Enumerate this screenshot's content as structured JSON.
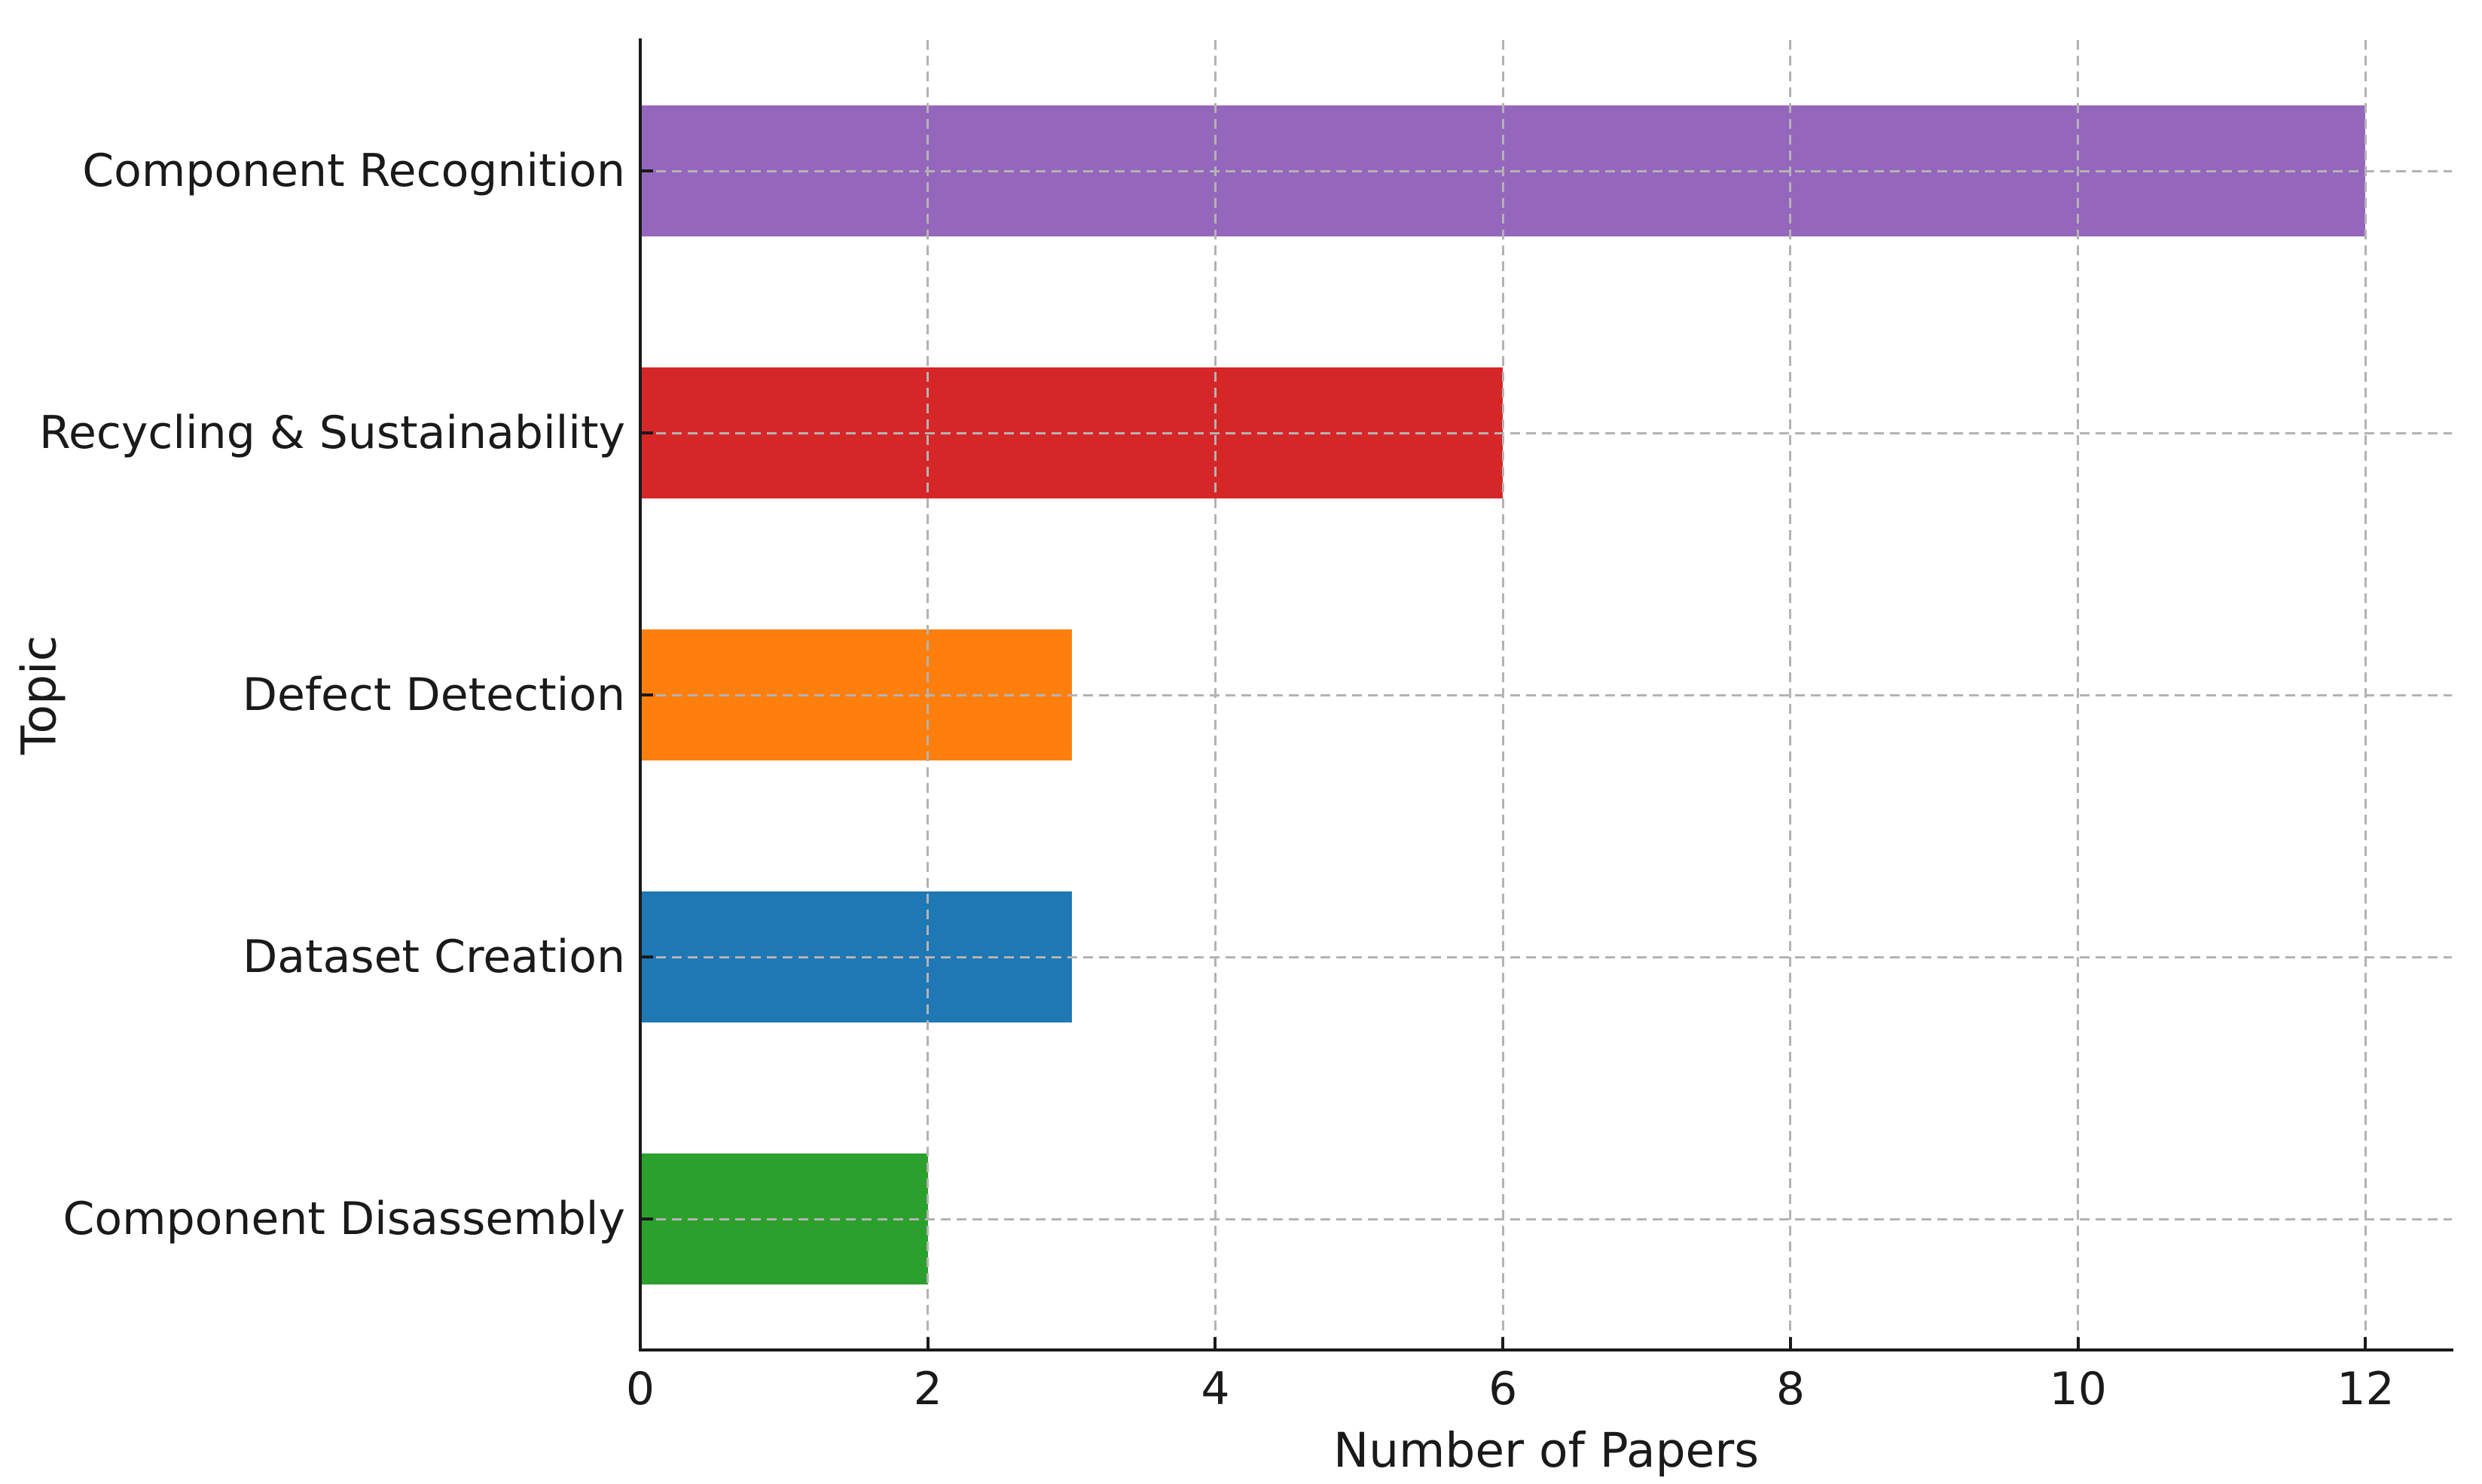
{
  "chart_data": {
    "type": "bar",
    "orientation": "horizontal",
    "title": "",
    "xlabel": "Number of Papers",
    "ylabel": "Topic",
    "categories": [
      "Component Recognition",
      "Recycling & Sustainability",
      "Defect Detection",
      "Dataset Creation",
      "Component Disassembly"
    ],
    "values": [
      12,
      6,
      3,
      3,
      2
    ],
    "bar_colors": [
      "#9467bd",
      "#d62728",
      "#ff7f0e",
      "#1f77b4",
      "#2ca02c"
    ],
    "x_ticks": [
      0,
      2,
      4,
      6,
      8,
      10,
      12
    ],
    "xlim": [
      0,
      12.6
    ],
    "bar_height_fraction": 0.5,
    "grid": "dashed",
    "grid_color": "#b3b3b3",
    "legend": "none",
    "background_color": "#ffffff",
    "axis_color": "#1a1a1a"
  }
}
